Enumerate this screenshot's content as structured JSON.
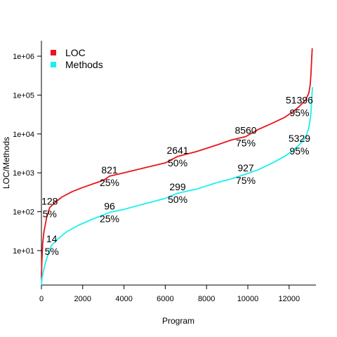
{
  "chart_data": {
    "type": "line",
    "title": "",
    "xlabel": "Program",
    "ylabel": "LOC/Methods",
    "x_scale": "linear",
    "y_scale": "log",
    "xlim": [
      0,
      13300
    ],
    "ylim": [
      1.3,
      2500000
    ],
    "grid": false,
    "legend_position": "top-left",
    "x_ticks": [
      {
        "value": 0,
        "label": "0"
      },
      {
        "value": 2000,
        "label": "2000"
      },
      {
        "value": 4000,
        "label": "4000"
      },
      {
        "value": 6000,
        "label": "6000"
      },
      {
        "value": 8000,
        "label": "8000"
      },
      {
        "value": 10000,
        "label": "10000"
      },
      {
        "value": 12000,
        "label": "12000"
      }
    ],
    "y_ticks": [
      {
        "value": 10,
        "label": "1e+01"
      },
      {
        "value": 100,
        "label": "1e+02"
      },
      {
        "value": 1000,
        "label": "1e+03"
      },
      {
        "value": 10000,
        "label": "1e+04"
      },
      {
        "value": 100000,
        "label": "1e+05"
      },
      {
        "value": 1000000,
        "label": "1e+06"
      }
    ],
    "series": [
      {
        "name": "LOC",
        "color": "#e8141c",
        "points": [
          [
            0,
            2
          ],
          [
            20,
            5
          ],
          [
            60,
            15
          ],
          [
            120,
            30
          ],
          [
            250,
            70
          ],
          [
            400,
            128
          ],
          [
            700,
            180
          ],
          [
            1000,
            240
          ],
          [
            1500,
            330
          ],
          [
            2000,
            420
          ],
          [
            2500,
            520
          ],
          [
            3000,
            640
          ],
          [
            3300,
            821
          ],
          [
            4000,
            1000
          ],
          [
            5000,
            1350
          ],
          [
            6000,
            1800
          ],
          [
            6600,
            2641
          ],
          [
            7500,
            3500
          ],
          [
            8500,
            5200
          ],
          [
            9200,
            7000
          ],
          [
            9900,
            8560
          ],
          [
            10500,
            13000
          ],
          [
            11200,
            19000
          ],
          [
            11800,
            27000
          ],
          [
            12200,
            38000
          ],
          [
            12500,
            51396
          ],
          [
            12800,
            75000
          ],
          [
            12950,
            110000
          ],
          [
            13020,
            180000
          ],
          [
            13060,
            350000
          ],
          [
            13100,
            1000000
          ],
          [
            13120,
            1600000
          ]
        ]
      },
      {
        "name": "Methods",
        "color": "#19f0f0",
        "points": [
          [
            0,
            1.3
          ],
          [
            30,
            2
          ],
          [
            100,
            3
          ],
          [
            200,
            5
          ],
          [
            350,
            9
          ],
          [
            500,
            14
          ],
          [
            800,
            20
          ],
          [
            1200,
            30
          ],
          [
            1800,
            45
          ],
          [
            2500,
            65
          ],
          [
            3300,
            96
          ],
          [
            4000,
            115
          ],
          [
            5000,
            160
          ],
          [
            6000,
            220
          ],
          [
            6600,
            299
          ],
          [
            7500,
            380
          ],
          [
            8500,
            560
          ],
          [
            9200,
            700
          ],
          [
            9900,
            927
          ],
          [
            10500,
            1200
          ],
          [
            11200,
            1800
          ],
          [
            11800,
            2700
          ],
          [
            12200,
            3800
          ],
          [
            12500,
            5329
          ],
          [
            12800,
            8000
          ],
          [
            12950,
            14000
          ],
          [
            13050,
            30000
          ],
          [
            13100,
            80000
          ],
          [
            13130,
            160000
          ]
        ]
      }
    ],
    "annotations": [
      {
        "series": "LOC",
        "x": 400,
        "y": 128,
        "value": "128",
        "pct": "5%"
      },
      {
        "series": "LOC",
        "x": 3300,
        "y": 821,
        "value": "821",
        "pct": "25%"
      },
      {
        "series": "LOC",
        "x": 6600,
        "y": 2641,
        "value": "2641",
        "pct": "50%"
      },
      {
        "series": "LOC",
        "x": 9900,
        "y": 8560,
        "value": "8560",
        "pct": "75%"
      },
      {
        "series": "LOC",
        "x": 12500,
        "y": 51396,
        "value": "51396",
        "pct": "95%"
      },
      {
        "series": "Methods",
        "x": 500,
        "y": 14,
        "value": "14",
        "pct": "5%"
      },
      {
        "series": "Methods",
        "x": 3300,
        "y": 96,
        "value": "96",
        "pct": "25%"
      },
      {
        "series": "Methods",
        "x": 6600,
        "y": 299,
        "value": "299",
        "pct": "50%"
      },
      {
        "series": "Methods",
        "x": 9900,
        "y": 927,
        "value": "927",
        "pct": "75%"
      },
      {
        "series": "Methods",
        "x": 12500,
        "y": 5329,
        "value": "5329",
        "pct": "95%"
      }
    ]
  }
}
